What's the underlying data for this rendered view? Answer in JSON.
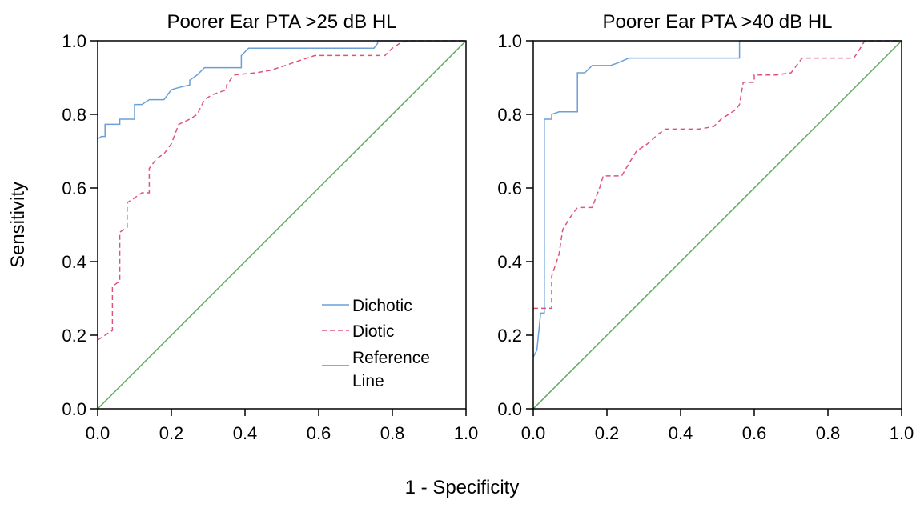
{
  "figure": {
    "xlabel": "1 - Specificity",
    "ylabel": "Sensitivity"
  },
  "chart_data": [
    {
      "type": "line",
      "title": "Poorer Ear PTA >25 dB HL",
      "xlabel": "1 - Specificity",
      "ylabel": "Sensitivity",
      "xlim": [
        0,
        1
      ],
      "ylim": [
        0,
        1
      ],
      "xticks": [
        "0.0",
        "0.2",
        "0.4",
        "0.6",
        "0.8",
        "1.0"
      ],
      "yticks": [
        "0.0",
        "0.2",
        "0.4",
        "0.6",
        "0.8",
        "1.0"
      ],
      "grid": false,
      "legend": {
        "position": "bottom-right",
        "entries": [
          {
            "line1": "Dichotic",
            "line2": ""
          },
          {
            "line1": "Diotic",
            "line2": ""
          },
          {
            "line1": "Reference",
            "line2": "Line"
          }
        ]
      },
      "series": [
        {
          "name": "Dichotic",
          "color": "#6a9fd8",
          "dash": "solid",
          "points": [
            [
              0,
              0.733
            ],
            [
              0.01,
              0.74
            ],
            [
              0.02,
              0.74
            ],
            [
              0.02,
              0.773
            ],
            [
              0.04,
              0.773
            ],
            [
              0.06,
              0.773
            ],
            [
              0.06,
              0.787
            ],
            [
              0.08,
              0.787
            ],
            [
              0.1,
              0.787
            ],
            [
              0.1,
              0.827
            ],
            [
              0.12,
              0.827
            ],
            [
              0.14,
              0.84
            ],
            [
              0.16,
              0.84
            ],
            [
              0.18,
              0.84
            ],
            [
              0.2,
              0.867
            ],
            [
              0.22,
              0.873
            ],
            [
              0.25,
              0.88
            ],
            [
              0.25,
              0.893
            ],
            [
              0.27,
              0.907
            ],
            [
              0.29,
              0.927
            ],
            [
              0.31,
              0.927
            ],
            [
              0.39,
              0.927
            ],
            [
              0.39,
              0.96
            ],
            [
              0.41,
              0.98
            ],
            [
              0.45,
              0.98
            ],
            [
              0.75,
              0.98
            ],
            [
              0.76,
              0.993
            ],
            [
              0.76,
              1
            ],
            [
              1,
              1
            ]
          ]
        },
        {
          "name": "Diotic",
          "color": "#e0547a",
          "dash": "dashed",
          "points": [
            [
              0,
              0.187
            ],
            [
              0.02,
              0.2
            ],
            [
              0.04,
              0.213
            ],
            [
              0.04,
              0.333
            ],
            [
              0.06,
              0.347
            ],
            [
              0.06,
              0.48
            ],
            [
              0.08,
              0.493
            ],
            [
              0.08,
              0.56
            ],
            [
              0.1,
              0.573
            ],
            [
              0.12,
              0.587
            ],
            [
              0.14,
              0.587
            ],
            [
              0.14,
              0.653
            ],
            [
              0.16,
              0.68
            ],
            [
              0.18,
              0.693
            ],
            [
              0.2,
              0.72
            ],
            [
              0.22,
              0.773
            ],
            [
              0.25,
              0.787
            ],
            [
              0.27,
              0.8
            ],
            [
              0.29,
              0.84
            ],
            [
              0.31,
              0.853
            ],
            [
              0.35,
              0.867
            ],
            [
              0.35,
              0.88
            ],
            [
              0.37,
              0.907
            ],
            [
              0.43,
              0.913
            ],
            [
              0.47,
              0.92
            ],
            [
              0.51,
              0.933
            ],
            [
              0.55,
              0.947
            ],
            [
              0.59,
              0.96
            ],
            [
              0.63,
              0.96
            ],
            [
              0.78,
              0.96
            ],
            [
              0.8,
              0.98
            ],
            [
              0.82,
              0.993
            ],
            [
              0.84,
              1
            ],
            [
              1,
              1
            ]
          ]
        },
        {
          "name": "Reference Line",
          "color": "#5aaa5a",
          "dash": "solid",
          "points": [
            [
              0,
              0
            ],
            [
              1,
              1
            ]
          ]
        }
      ]
    },
    {
      "type": "line",
      "title": "Poorer Ear PTA >40 dB HL",
      "xlabel": "1 - Specificity",
      "ylabel": "Sensitivity",
      "xlim": [
        0,
        1
      ],
      "ylim": [
        0,
        1
      ],
      "xticks": [
        "0.0",
        "0.2",
        "0.4",
        "0.6",
        "0.8",
        "1.0"
      ],
      "yticks": [
        "0.0",
        "0.2",
        "0.4",
        "0.6",
        "0.8",
        "1.0"
      ],
      "grid": false,
      "legend": {
        "position": "none",
        "entries": []
      },
      "series": [
        {
          "name": "Dichotic",
          "color": "#6a9fd8",
          "dash": "solid",
          "points": [
            [
              0,
              0.14
            ],
            [
              0.01,
              0.16
            ],
            [
              0.02,
              0.26
            ],
            [
              0.03,
              0.26
            ],
            [
              0.03,
              0.787
            ],
            [
              0.05,
              0.787
            ],
            [
              0.05,
              0.8
            ],
            [
              0.07,
              0.807
            ],
            [
              0.12,
              0.807
            ],
            [
              0.12,
              0.913
            ],
            [
              0.14,
              0.913
            ],
            [
              0.16,
              0.933
            ],
            [
              0.18,
              0.933
            ],
            [
              0.2,
              0.933
            ],
            [
              0.21,
              0.933
            ],
            [
              0.23,
              0.94
            ],
            [
              0.26,
              0.953
            ],
            [
              0.3,
              0.953
            ],
            [
              0.56,
              0.953
            ],
            [
              0.56,
              1
            ],
            [
              1,
              1
            ]
          ]
        },
        {
          "name": "Diotic",
          "color": "#e0547a",
          "dash": "dashed",
          "points": [
            [
              0,
              0.273
            ],
            [
              0.05,
              0.273
            ],
            [
              0.05,
              0.36
            ],
            [
              0.07,
              0.42
            ],
            [
              0.08,
              0.487
            ],
            [
              0.1,
              0.52
            ],
            [
              0.12,
              0.547
            ],
            [
              0.16,
              0.547
            ],
            [
              0.18,
              0.6
            ],
            [
              0.19,
              0.633
            ],
            [
              0.24,
              0.633
            ],
            [
              0.26,
              0.667
            ],
            [
              0.28,
              0.7
            ],
            [
              0.31,
              0.72
            ],
            [
              0.34,
              0.747
            ],
            [
              0.36,
              0.76
            ],
            [
              0.45,
              0.76
            ],
            [
              0.49,
              0.767
            ],
            [
              0.51,
              0.787
            ],
            [
              0.55,
              0.813
            ],
            [
              0.56,
              0.827
            ],
            [
              0.57,
              0.887
            ],
            [
              0.6,
              0.887
            ],
            [
              0.6,
              0.907
            ],
            [
              0.66,
              0.907
            ],
            [
              0.7,
              0.913
            ],
            [
              0.73,
              0.953
            ],
            [
              0.87,
              0.953
            ],
            [
              0.88,
              0.967
            ],
            [
              0.9,
              1
            ],
            [
              1,
              1
            ]
          ]
        },
        {
          "name": "Reference Line",
          "color": "#5aaa5a",
          "dash": "solid",
          "points": [
            [
              0,
              0
            ],
            [
              1,
              1
            ]
          ]
        }
      ]
    }
  ]
}
